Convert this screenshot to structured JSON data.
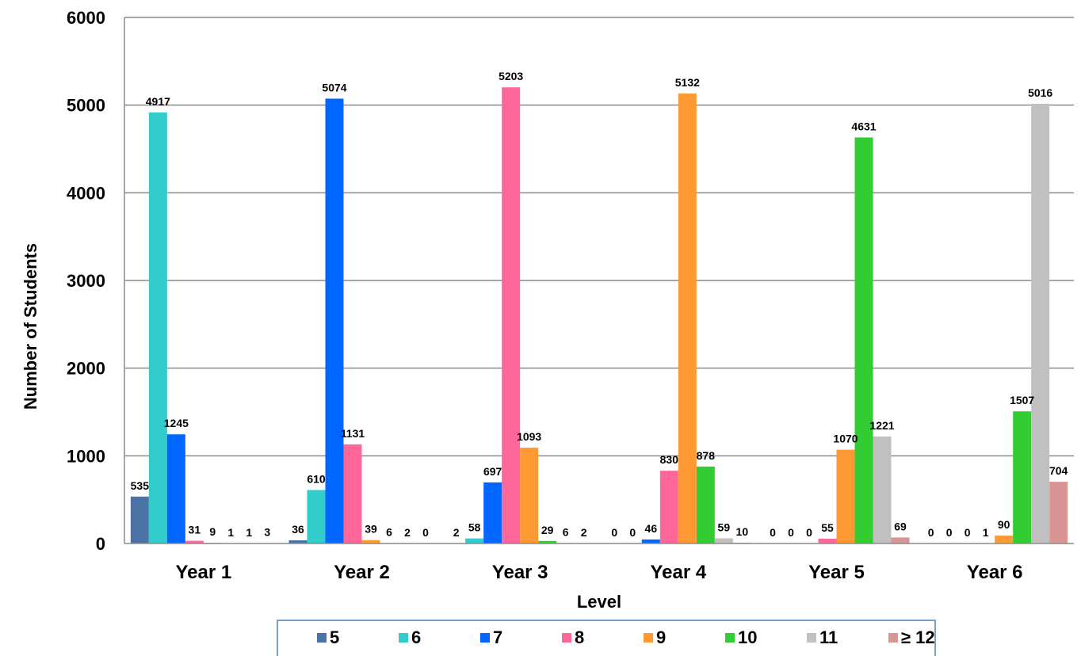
{
  "chart_data": {
    "type": "bar",
    "categories": [
      "Year 1",
      "Year 2",
      "Year 3",
      "Year 4",
      "Year 5",
      "Year 6"
    ],
    "series": [
      {
        "name": "5",
        "color": "#4a72a4",
        "values": [
          535,
          36,
          2,
          0,
          0,
          0
        ]
      },
      {
        "name": "6",
        "color": "#33cccc",
        "values": [
          4917,
          610,
          58,
          0,
          0,
          0
        ]
      },
      {
        "name": "7",
        "color": "#0066ff",
        "values": [
          1245,
          5074,
          697,
          46,
          0,
          0
        ]
      },
      {
        "name": "8",
        "color": "#ff6699",
        "values": [
          31,
          1131,
          5203,
          830,
          55,
          1
        ]
      },
      {
        "name": "9",
        "color": "#ff9933",
        "values": [
          9,
          39,
          1093,
          5132,
          1070,
          90
        ]
      },
      {
        "name": "10",
        "color": "#33cc33",
        "values": [
          1,
          6,
          29,
          878,
          4631,
          1507
        ]
      },
      {
        "name": "11",
        "color": "#c0c0c0",
        "values": [
          1,
          2,
          6,
          59,
          1221,
          5016
        ]
      },
      {
        "name": "≥ 12",
        "color": "#d99594",
        "values": [
          3,
          0,
          2,
          10,
          69,
          704
        ]
      }
    ],
    "xlabel": "Level",
    "ylabel": "Number of Students",
    "ylim": [
      0,
      6000
    ],
    "yticks": [
      0,
      1000,
      2000,
      3000,
      4000,
      5000,
      6000
    ],
    "grid": true,
    "legend": "bottom"
  }
}
